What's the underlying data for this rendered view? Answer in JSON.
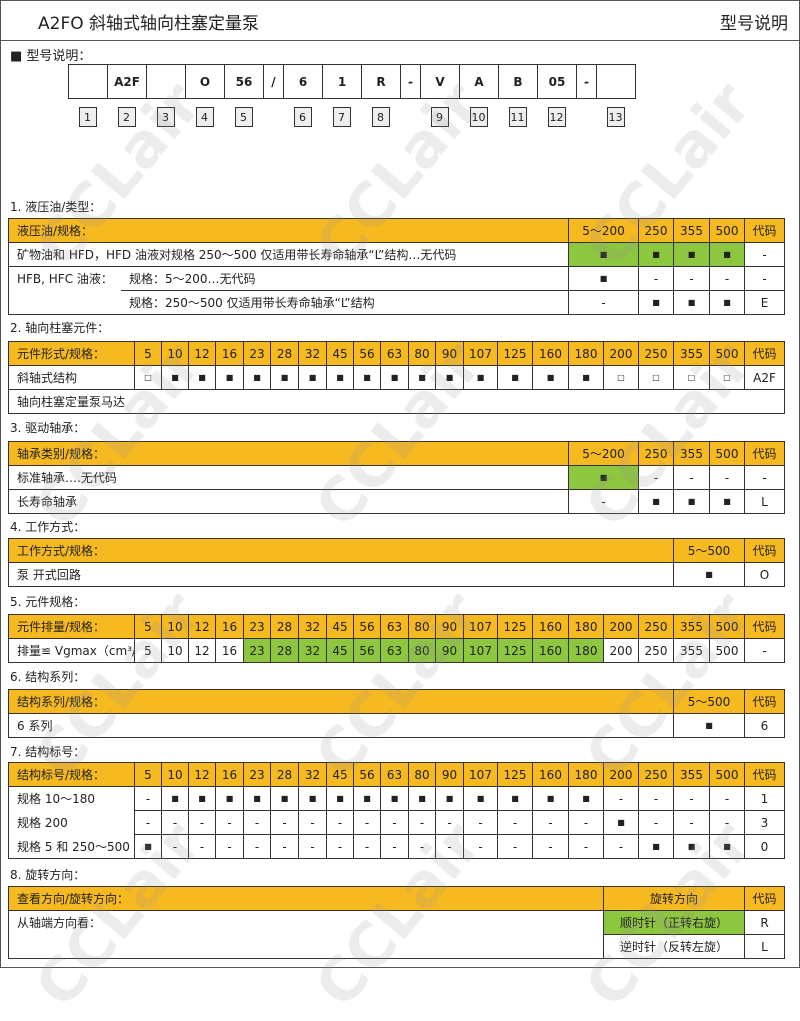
{
  "header": {
    "title": "A2FO 斜轴式轴向柱塞定量泵",
    "section": "型号说明"
  },
  "intro": "■  型号说明：",
  "watermark": "CCLair",
  "code": {
    "cells": [
      "",
      "A2F",
      "",
      "O",
      "56",
      "/",
      "6",
      "1",
      "R",
      "-",
      "V",
      "A",
      "B",
      "05",
      "-",
      ""
    ],
    "numbers": [
      "1",
      "2",
      "3",
      "4",
      "5",
      "6",
      "7",
      "8",
      "9",
      "10",
      "11",
      "12",
      "13"
    ]
  },
  "colors": {
    "header": "#f7b920",
    "highlight": "#8dc63f"
  },
  "sections": [
    {
      "title": "1.  液压油/类型：",
      "kind": "narrow",
      "header": [
        "液压油/规格：",
        "5～200",
        "250",
        "355",
        "500",
        "代码"
      ],
      "rows": [
        {
          "label": "矿物油和 HFD，HFD 油液对规格 250～500 仅适用带长寿命轴承“L”结构…无代码",
          "cells": [
            "■",
            "■",
            "■",
            "■",
            "-"
          ],
          "highlight": [
            0,
            1,
            2,
            3
          ]
        },
        {
          "group": "HFB, HFC 油液：",
          "label": "规格：5～200…无代码",
          "cells": [
            "■",
            "-",
            "-",
            "-",
            "-"
          ]
        },
        {
          "label": "规格：250～500 仅适用带长寿命轴承“L”结构",
          "cells": [
            "-",
            "■",
            "■",
            "■",
            "E"
          ],
          "indent": true
        }
      ]
    },
    {
      "title": "2.  轴向柱塞元件：",
      "kind": "wide",
      "header": [
        "元件形式/规格：",
        "5",
        "10",
        "12",
        "16",
        "23",
        "28",
        "32",
        "45",
        "56",
        "63",
        "80",
        "90",
        "107",
        "125",
        "160",
        "180",
        "200",
        "250",
        "355",
        "500",
        "代码"
      ],
      "rows": [
        {
          "label": "斜轴式结构",
          "cells": [
            "□",
            "■",
            "■",
            "■",
            "■",
            "■",
            "■",
            "■",
            "■",
            "■",
            "■",
            "■",
            "■",
            "■",
            "■",
            "■",
            "□",
            "□",
            "□",
            "□",
            "A2F"
          ]
        },
        {
          "label": "轴向柱塞定量泵马达",
          "full": true
        }
      ]
    },
    {
      "title": "3.  驱动轴承：",
      "kind": "narrow",
      "header": [
        "轴承类别/规格：",
        "5～200",
        "250",
        "355",
        "500",
        "代码"
      ],
      "rows": [
        {
          "label": "标准轴承….无代码",
          "cells": [
            "■",
            "-",
            "-",
            "-",
            "-"
          ],
          "highlight": [
            0
          ]
        },
        {
          "label": "长寿命轴承",
          "cells": [
            "-",
            "■",
            "■",
            "■",
            "L"
          ]
        }
      ]
    },
    {
      "title": "4.  工作方式：",
      "kind": "single",
      "header": [
        "工作方式/规格：",
        "5～500",
        "代码"
      ],
      "rows": [
        {
          "label": "泵  开式回路",
          "cells": [
            "■",
            "O"
          ]
        }
      ]
    },
    {
      "title": "5.  元件规格：",
      "kind": "wide",
      "header": [
        "元件排量/规格：",
        "5",
        "10",
        "12",
        "16",
        "23",
        "28",
        "32",
        "45",
        "56",
        "63",
        "80",
        "90",
        "107",
        "125",
        "160",
        "180",
        "200",
        "250",
        "355",
        "500",
        "代码"
      ],
      "rows": [
        {
          "label": "排量≌ Vgmax（cm³/r）",
          "cells": [
            "5",
            "10",
            "12",
            "16",
            "23",
            "28",
            "32",
            "45",
            "56",
            "63",
            "80",
            "90",
            "107",
            "125",
            "160",
            "180",
            "200",
            "250",
            "355",
            "500",
            "-"
          ],
          "highlight": [
            4,
            5,
            6,
            7,
            8,
            9,
            10,
            11,
            12,
            13,
            14,
            15
          ],
          "plain": true
        }
      ]
    },
    {
      "title": "6.  结构系列：",
      "kind": "single",
      "header": [
        "结构系列/规格：",
        "5～500",
        "代码"
      ],
      "rows": [
        {
          "label": "6 系列",
          "cells": [
            "■",
            "6"
          ]
        }
      ]
    },
    {
      "title": "7.  结构标号：",
      "kind": "wide",
      "header": [
        "结构标号/规格：",
        "5",
        "10",
        "12",
        "16",
        "23",
        "28",
        "32",
        "45",
        "56",
        "63",
        "80",
        "90",
        "107",
        "125",
        "160",
        "180",
        "200",
        "250",
        "355",
        "500",
        "代码"
      ],
      "rows": [
        {
          "label": "规格 10～180",
          "cells": [
            "-",
            "■",
            "■",
            "■",
            "■",
            "■",
            "■",
            "■",
            "■",
            "■",
            "■",
            "■",
            "■",
            "■",
            "■",
            "■",
            "-",
            "-",
            "-",
            "-",
            "1"
          ],
          "merge": true
        },
        {
          "label": "规格 200",
          "cells": [
            "-",
            "-",
            "-",
            "-",
            "-",
            "-",
            "-",
            "-",
            "-",
            "-",
            "-",
            "-",
            "-",
            "-",
            "-",
            "-",
            "■",
            "-",
            "-",
            "-",
            "3"
          ],
          "merge": true
        },
        {
          "label": "规格 5 和 250～500",
          "cells": [
            "■",
            "-",
            "-",
            "-",
            "-",
            "-",
            "-",
            "-",
            "-",
            "-",
            "-",
            "-",
            "-",
            "-",
            "-",
            "-",
            "-",
            "■",
            "■",
            "■",
            "0"
          ]
        }
      ]
    },
    {
      "title": "8.  旋转方向：",
      "kind": "rot",
      "header": [
        "查看方向/旋转方向：",
        "旋转方向",
        "代码"
      ],
      "rows": [
        {
          "label": "从轴端方向看：",
          "cells": [
            "顺时针（正转右旋）",
            "R"
          ],
          "highlight": [
            0
          ],
          "merge": true,
          "plain": true
        },
        {
          "label": "",
          "cells": [
            "逆时针（反转左旋）",
            "L"
          ],
          "plain": true
        }
      ]
    }
  ]
}
